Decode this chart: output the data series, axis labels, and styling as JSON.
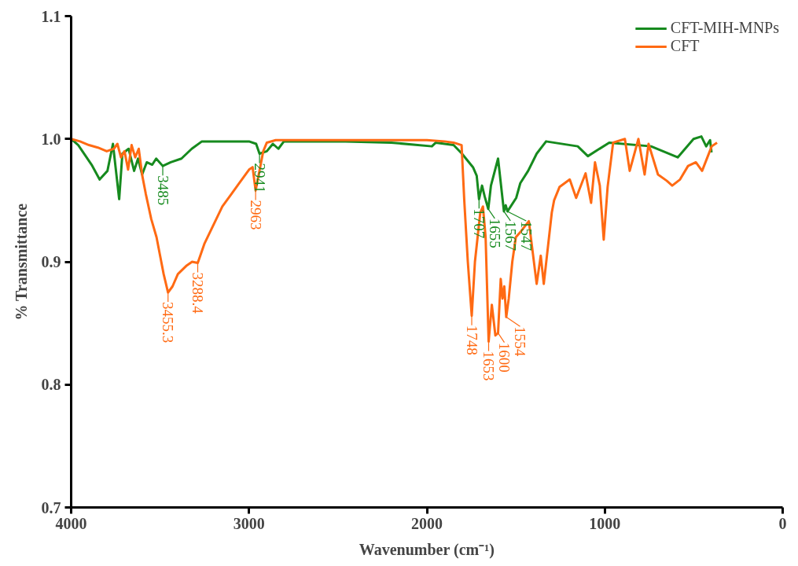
{
  "chart_data": {
    "type": "line",
    "xlabel": "Wavenumber (cm⁻¹)",
    "ylabel": "% Transmittance",
    "xlim": [
      4000,
      0
    ],
    "ylim": [
      0.7,
      1.1
    ],
    "xticks": [
      4000,
      3000,
      2000,
      1000,
      0
    ],
    "yticks": [
      {
        "value": 0.7,
        "label": "0.7"
      },
      {
        "value": 0.8,
        "label": "0.8"
      },
      {
        "value": 0.9,
        "label": "0.9"
      },
      {
        "value": 1.0,
        "label": "1.0"
      },
      {
        "value": 1.1,
        "label": "1.1"
      }
    ],
    "grid": false,
    "legend": "top right",
    "line_style": "solid",
    "marker": "none",
    "series": [
      {
        "name": "CFT-MIH-MNPs",
        "color": "#168a1e",
        "x": [
          4000,
          3960,
          3885,
          3840,
          3796,
          3765,
          3730,
          3712,
          3677,
          3646,
          3624,
          3601,
          3575,
          3544,
          3522,
          3485,
          3440,
          3380,
          3322,
          3265,
          3000,
          2960,
          2941,
          2900,
          2866,
          2835,
          2804,
          2500,
          2200,
          1972,
          1950,
          1850,
          1803,
          1741,
          1720,
          1707,
          1690,
          1675,
          1655,
          1640,
          1600,
          1567,
          1557,
          1547,
          1498,
          1475,
          1431,
          1383,
          1330,
          1152,
          1095,
          975,
          740,
          590,
          501,
          457,
          430,
          408,
          400
        ],
        "values": [
          1.0,
          0.995,
          0.979,
          0.967,
          0.974,
          0.996,
          0.951,
          0.988,
          0.992,
          0.974,
          0.984,
          0.971,
          0.981,
          0.979,
          0.984,
          0.978,
          0.981,
          0.984,
          0.992,
          0.998,
          0.998,
          0.996,
          0.988,
          0.99,
          0.996,
          0.992,
          0.998,
          0.998,
          0.997,
          0.994,
          0.997,
          0.995,
          0.988,
          0.977,
          0.97,
          0.951,
          0.962,
          0.953,
          0.943,
          0.962,
          0.984,
          0.941,
          0.946,
          0.941,
          0.952,
          0.964,
          0.974,
          0.988,
          0.998,
          0.994,
          0.986,
          0.997,
          0.994,
          0.985,
          1.0,
          1.002,
          0.994,
          0.999,
          0.989
        ]
      },
      {
        "name": "CFT",
        "color": "#ff6a13",
        "x": [
          4000,
          3950,
          3900,
          3850,
          3800,
          3760,
          3740,
          3720,
          3700,
          3680,
          3660,
          3640,
          3620,
          3600,
          3580,
          3550,
          3520,
          3500,
          3480,
          3455.3,
          3430,
          3400,
          3350,
          3320,
          3288.4,
          3250,
          3200,
          3150,
          3100,
          3050,
          3000,
          2980,
          2963,
          2940,
          2920,
          2900,
          2850,
          2500,
          2000,
          1900,
          1850,
          1805,
          1790,
          1770,
          1748,
          1730,
          1700,
          1685,
          1670,
          1653,
          1635,
          1615,
          1600,
          1585,
          1575,
          1565,
          1554,
          1540,
          1520,
          1500,
          1470,
          1427,
          1383,
          1360,
          1343,
          1298,
          1285,
          1254,
          1197,
          1161,
          1108,
          1077,
          1055,
          1028,
          1006,
          984,
          953,
          887,
          860,
          811,
          776,
          754,
          701,
          652,
          621,
          577,
          532,
          488,
          453,
          399,
          369
        ],
        "values": [
          1.0,
          0.998,
          0.995,
          0.993,
          0.99,
          0.992,
          0.996,
          0.985,
          0.99,
          0.975,
          0.995,
          0.985,
          0.992,
          0.97,
          0.955,
          0.935,
          0.92,
          0.905,
          0.89,
          0.875,
          0.88,
          0.89,
          0.897,
          0.9,
          0.899,
          0.915,
          0.93,
          0.945,
          0.955,
          0.965,
          0.975,
          0.977,
          0.958,
          0.975,
          0.99,
          0.997,
          0.999,
          0.999,
          0.999,
          0.998,
          0.997,
          0.995,
          0.95,
          0.9,
          0.856,
          0.9,
          0.94,
          0.945,
          0.92,
          0.835,
          0.865,
          0.84,
          0.842,
          0.886,
          0.87,
          0.88,
          0.855,
          0.87,
          0.9,
          0.92,
          0.925,
          0.933,
          0.882,
          0.905,
          0.882,
          0.94,
          0.95,
          0.961,
          0.967,
          0.952,
          0.972,
          0.948,
          0.981,
          0.962,
          0.918,
          0.961,
          0.997,
          1.0,
          0.974,
          1.0,
          0.971,
          0.996,
          0.971,
          0.966,
          0.962,
          0.967,
          0.978,
          0.981,
          0.974,
          0.994,
          0.997
        ]
      }
    ],
    "annotations": [
      {
        "text": "3485",
        "x": 3485,
        "y": 0.978
      },
      {
        "text": "2941",
        "x": 2941,
        "y": 0.988
      },
      {
        "text": "1707",
        "x": 1707,
        "y": 0.951
      },
      {
        "text": "1655",
        "x": 1655,
        "y": 0.943
      },
      {
        "text": "1567",
        "x": 1567,
        "y": 0.941
      },
      {
        "text": "1547",
        "x": 1547,
        "y": 0.941
      },
      {
        "text": "3455.3",
        "x": 3455.3,
        "y": 0.875
      },
      {
        "text": "3288.4",
        "x": 3288.4,
        "y": 0.899
      },
      {
        "text": "2963",
        "x": 2963,
        "y": 0.958
      },
      {
        "text": "1748",
        "x": 1748,
        "y": 0.856
      },
      {
        "text": "1653",
        "x": 1653,
        "y": 0.835
      },
      {
        "text": "1600",
        "x": 1600,
        "y": 0.842
      },
      {
        "text": "1554",
        "x": 1554,
        "y": 0.855
      }
    ]
  }
}
